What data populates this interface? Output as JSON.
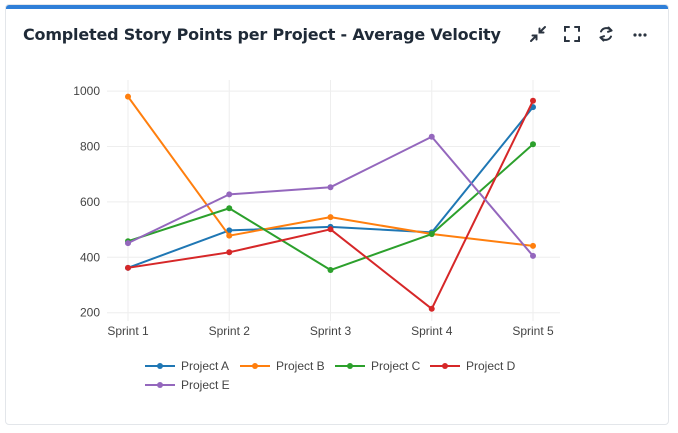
{
  "header": {
    "title": "Completed Story Points per Project - Average Velocity",
    "accent_color": "#2f7fd8"
  },
  "toolbar": {
    "icons": [
      "collapse-icon",
      "fullscreen-icon",
      "refresh-icon",
      "more-options-icon"
    ]
  },
  "chart_data": {
    "type": "line",
    "title": "Completed Story Points per Project - Average Velocity",
    "xlabel": "",
    "ylabel": "",
    "categories": [
      "Sprint 1",
      "Sprint 2",
      "Sprint 3",
      "Sprint 4",
      "Sprint 5"
    ],
    "y_ticks": [
      200,
      400,
      600,
      800,
      1000
    ],
    "ylim": [
      170,
      1040
    ],
    "grid": true,
    "legend_position": "bottom",
    "series": [
      {
        "name": "Project A",
        "color": "#1f77b4",
        "values": [
          362,
          497,
          510,
          490,
          942
        ]
      },
      {
        "name": "Project B",
        "color": "#ff7f0e",
        "values": [
          980,
          478,
          545,
          484,
          441
        ]
      },
      {
        "name": "Project C",
        "color": "#2ca02c",
        "values": [
          458,
          577,
          354,
          484,
          808
        ]
      },
      {
        "name": "Project D",
        "color": "#d62728",
        "values": [
          362,
          418,
          501,
          214,
          965
        ]
      },
      {
        "name": "Project E",
        "color": "#9467bd",
        "values": [
          451,
          627,
          653,
          835,
          405
        ]
      }
    ]
  }
}
